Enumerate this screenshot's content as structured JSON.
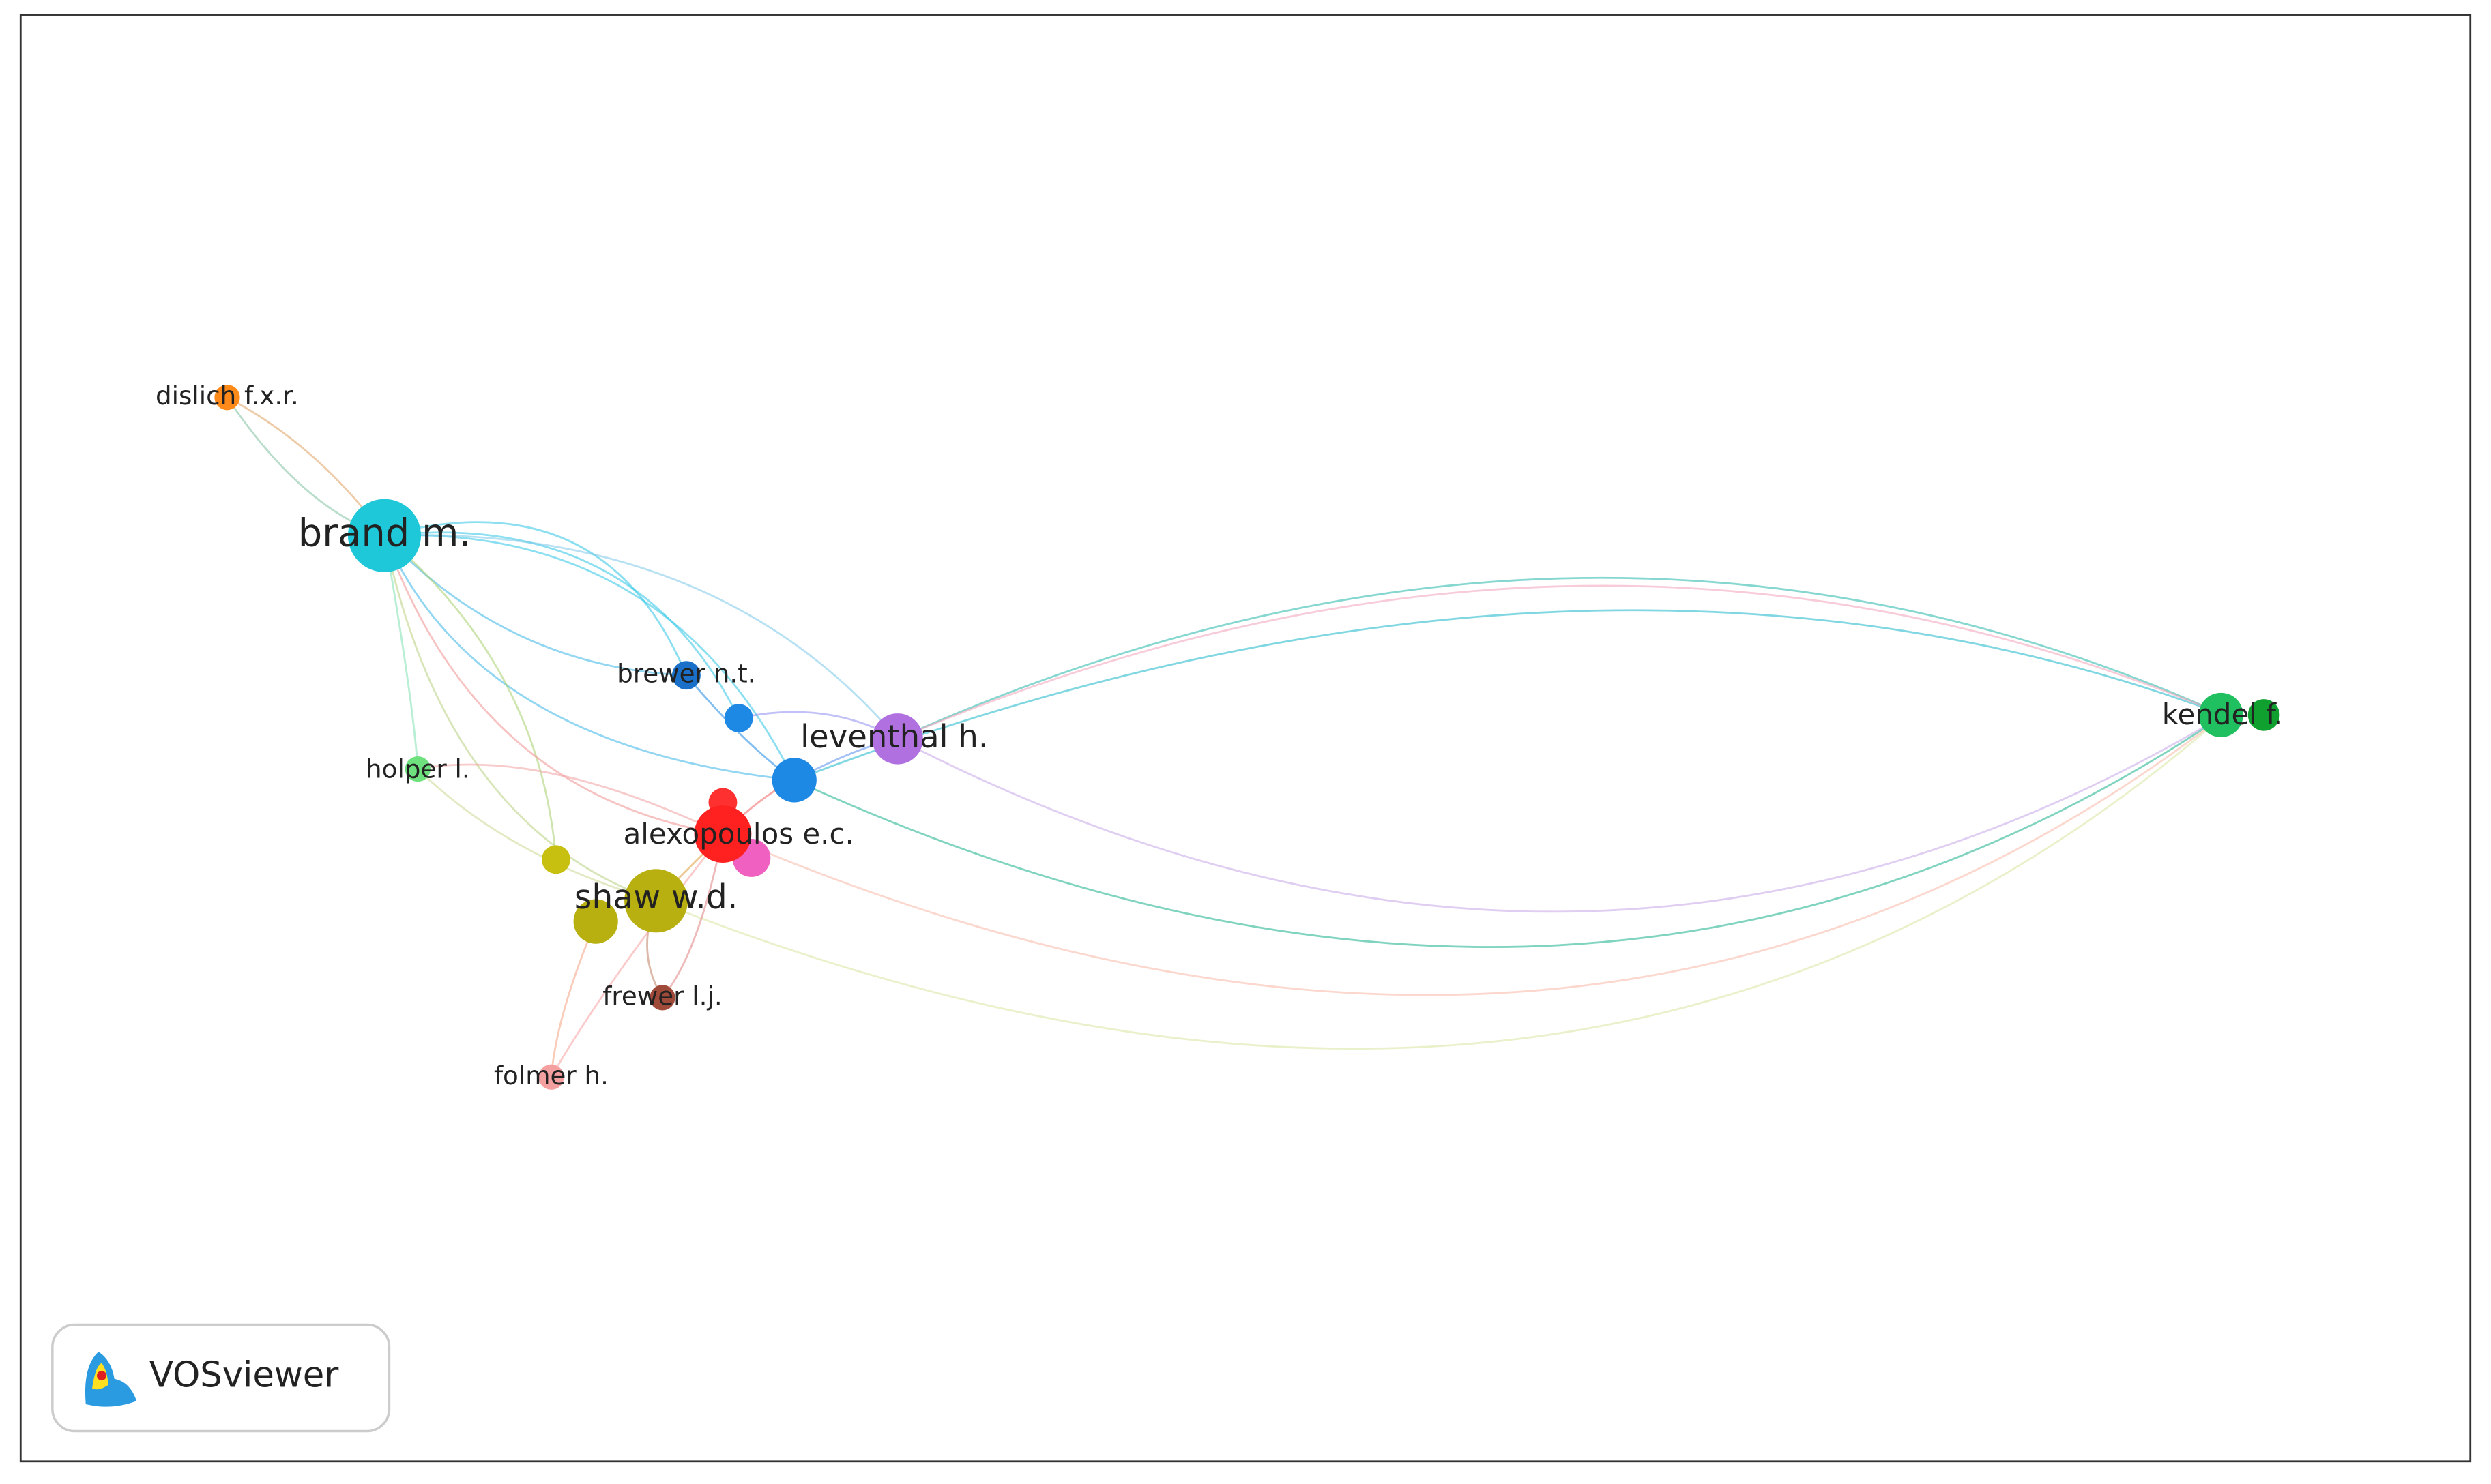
{
  "nodes": [
    {
      "label": "dislich f.x.r."
    },
    {
      "label": "brand m."
    },
    {
      "label": "brewer n.t."
    },
    {
      "label": "leventhal h."
    },
    {
      "label": "holper l."
    },
    {
      "label": "alexopoulos e.c."
    },
    {
      "label": "shaw w.d."
    },
    {
      "label": "frewer l.j."
    },
    {
      "label": "folmer h."
    },
    {
      "label": "kendel f."
    }
  ],
  "logo": {
    "text": "VOSviewer"
  }
}
